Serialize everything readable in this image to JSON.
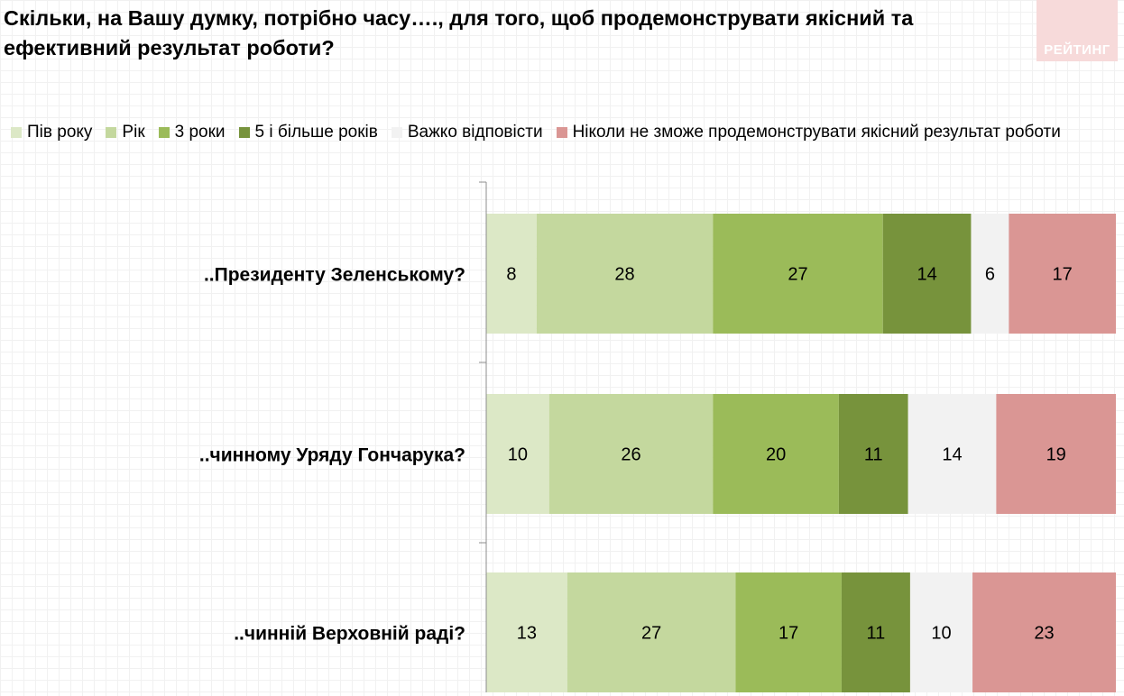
{
  "title": "Скільки, на Вашу думку, потрібно часу…., для того, щоб продемонструвати якісний та ефективний результат роботи?",
  "logo_text": "РЕЙТИНГ",
  "chart_data": {
    "type": "bar",
    "orientation": "horizontal",
    "stacked": true,
    "categories": [
      "..Президенту Зеленському?",
      "..чинному Уряду Гончарука?",
      "..чинній Верховній раді?"
    ],
    "series": [
      {
        "name": "Пів року",
        "color": "#dce8c6",
        "values": [
          8,
          10,
          13
        ]
      },
      {
        "name": "Рік",
        "color": "#c4d89e",
        "values": [
          28,
          26,
          27
        ]
      },
      {
        "name": "3 роки",
        "color": "#9bbb59",
        "values": [
          27,
          20,
          17
        ]
      },
      {
        "name": "5 і більше років",
        "color": "#77933c",
        "values": [
          14,
          11,
          11
        ]
      },
      {
        "name": "Важко відповісти",
        "color": "#f2f2f2",
        "values": [
          6,
          14,
          10
        ]
      },
      {
        "name": "Ніколи не зможе продемонструвати якісний результат роботи",
        "color": "#da9694",
        "values": [
          17,
          19,
          23
        ]
      }
    ],
    "xlim": [
      0,
      100
    ],
    "legend_position": "top",
    "data_labels": true,
    "grid": false
  }
}
